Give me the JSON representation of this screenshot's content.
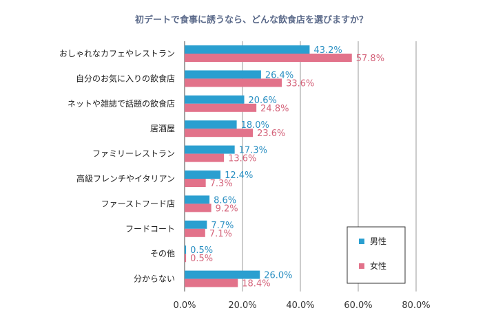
{
  "chart_data": {
    "type": "bar",
    "orientation": "horizontal",
    "title": "初デートで食事に誘うなら、どんな飲食店を選びますか？",
    "categories": [
      "おしゃれなカフェやレストラン",
      "自分のお気に入りの飲食店",
      "ネットや雑誌で話題の飲食店",
      "居酒屋",
      "ファミリーレストラン",
      "高級フレンチやイタリアン",
      "ファーストフード店",
      "フードコート",
      "その他",
      "分からない"
    ],
    "series": [
      {
        "name": "男性",
        "color": "#2a9fd0",
        "values": [
          43.2,
          26.4,
          20.6,
          18.0,
          17.3,
          12.4,
          8.6,
          7.7,
          0.5,
          26.0
        ],
        "labels": [
          "43.2%",
          "26.4%",
          "20.6%",
          "18.0%",
          "17.3%",
          "12.4%",
          "8.6%",
          "7.7%",
          "0.5%",
          "26.0%"
        ]
      },
      {
        "name": "女性",
        "color": "#e2728a",
        "values": [
          57.8,
          33.6,
          24.8,
          23.6,
          13.6,
          7.3,
          9.2,
          7.1,
          0.5,
          18.4
        ],
        "labels": [
          "57.8%",
          "33.6%",
          "24.8%",
          "23.6%",
          "13.6%",
          "7.3%",
          "9.2%",
          "7.1%",
          "0.5%",
          "18.4%"
        ]
      }
    ],
    "xlim": [
      0,
      80
    ],
    "xticks": [
      0,
      20,
      40,
      60,
      80
    ],
    "xtick_labels": [
      "0.0%",
      "20.0%",
      "40.0%",
      "60.0%",
      "80.0%"
    ],
    "grid": "vertical",
    "legend_position": "bottom-right"
  }
}
